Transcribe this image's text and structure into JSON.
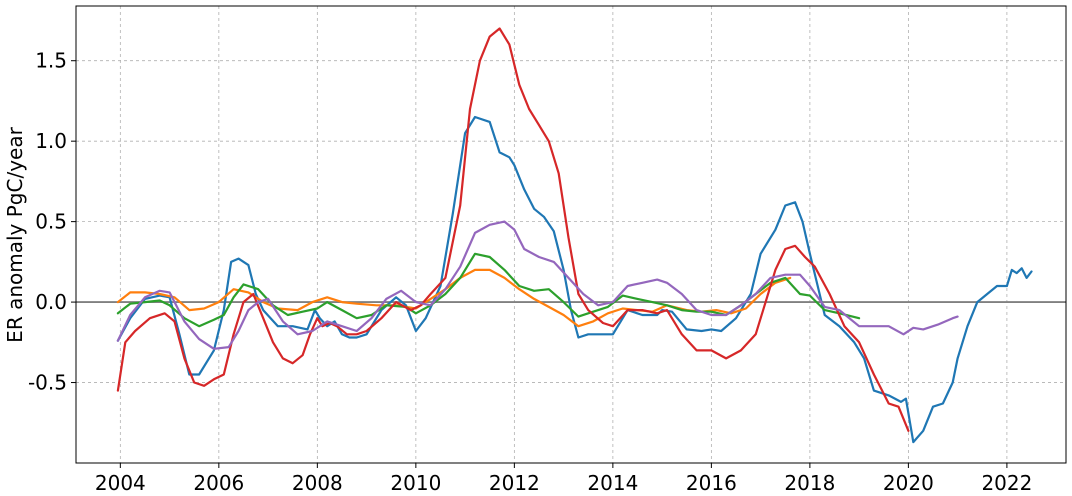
{
  "chart_data": {
    "type": "line",
    "title": "",
    "xlabel": "",
    "ylabel": "ER anomaly PgC/year",
    "xlim": [
      2003.1,
      2023.2
    ],
    "ylim": [
      -1.0,
      1.84
    ],
    "xticks": [
      2004,
      2006,
      2008,
      2010,
      2012,
      2014,
      2016,
      2018,
      2020,
      2022
    ],
    "xtick_labels": [
      "2004",
      "2006",
      "2008",
      "2010",
      "2012",
      "2014",
      "2016",
      "2018",
      "2020",
      "2022"
    ],
    "yticks": [
      -0.5,
      0.0,
      0.5,
      1.0,
      1.5
    ],
    "ytick_labels": [
      "-0.5",
      "0.0",
      "0.5",
      "1.0",
      "1.5"
    ],
    "grid": true,
    "zero_line": true,
    "series": [
      {
        "color": "#1f77b4",
        "x": [
          2003.95,
          2004.2,
          2004.5,
          2004.8,
          2005.0,
          2005.2,
          2005.4,
          2005.6,
          2005.9,
          2006.1,
          2006.25,
          2006.4,
          2006.6,
          2006.75,
          2006.9,
          2007.2,
          2007.5,
          2007.8,
          2007.95,
          2008.05,
          2008.2,
          2008.35,
          2008.5,
          2008.65,
          2008.8,
          2009.0,
          2009.3,
          2009.6,
          2009.8,
          2010.0,
          2010.2,
          2010.5,
          2010.75,
          2011.0,
          2011.2,
          2011.5,
          2011.7,
          2011.9,
          2012.0,
          2012.2,
          2012.4,
          2012.6,
          2012.8,
          2013.0,
          2013.15,
          2013.3,
          2013.5,
          2013.8,
          2014.0,
          2014.3,
          2014.6,
          2014.9,
          2015.0,
          2015.2,
          2015.5,
          2015.8,
          2016.0,
          2016.2,
          2016.5,
          2016.8,
          2017.0,
          2017.3,
          2017.5,
          2017.7,
          2017.85,
          2018.0,
          2018.3,
          2018.6,
          2018.9,
          2019.1,
          2019.3,
          2019.6,
          2019.85,
          2019.95,
          2020.1,
          2020.3,
          2020.5,
          2020.7,
          2020.9,
          2021.0,
          2021.2,
          2021.4,
          2021.6,
          2021.8,
          2022.0,
          2022.1,
          2022.2,
          2022.3,
          2022.4,
          2022.5
        ],
        "y": [
          -0.24,
          -0.1,
          0.02,
          0.04,
          0.03,
          -0.2,
          -0.45,
          -0.45,
          -0.3,
          -0.05,
          0.25,
          0.27,
          0.23,
          0.05,
          -0.05,
          -0.15,
          -0.15,
          -0.17,
          -0.05,
          -0.1,
          -0.15,
          -0.12,
          -0.2,
          -0.22,
          -0.22,
          -0.2,
          -0.05,
          0.03,
          -0.02,
          -0.18,
          -0.1,
          0.1,
          0.55,
          1.05,
          1.15,
          1.12,
          0.93,
          0.9,
          0.85,
          0.7,
          0.58,
          0.53,
          0.44,
          0.2,
          -0.05,
          -0.22,
          -0.2,
          -0.2,
          -0.2,
          -0.05,
          -0.08,
          -0.08,
          -0.05,
          -0.06,
          -0.17,
          -0.18,
          -0.17,
          -0.18,
          -0.1,
          0.05,
          0.3,
          0.45,
          0.6,
          0.62,
          0.5,
          0.3,
          -0.08,
          -0.15,
          -0.25,
          -0.35,
          -0.55,
          -0.58,
          -0.62,
          -0.6,
          -0.87,
          -0.8,
          -0.65,
          -0.63,
          -0.5,
          -0.35,
          -0.15,
          0.0,
          0.05,
          0.1,
          0.1,
          0.2,
          0.18,
          0.21,
          0.15,
          0.19
        ]
      },
      {
        "color": "#ff7f0e",
        "x": [
          2003.95,
          2004.2,
          2004.5,
          2004.8,
          2005.1,
          2005.4,
          2005.7,
          2006.0,
          2006.3,
          2006.6,
          2006.9,
          2007.2,
          2007.6,
          2007.9,
          2008.2,
          2008.5,
          2008.8,
          2009.2,
          2009.6,
          2010.0,
          2010.3,
          2010.6,
          2010.9,
          2011.2,
          2011.5,
          2011.8,
          2012.1,
          2012.4,
          2012.7,
          2013.0,
          2013.3,
          2013.6,
          2013.9,
          2014.2,
          2014.5,
          2014.8,
          2015.1,
          2015.5,
          2015.8,
          2016.1,
          2016.4,
          2016.7,
          2017.0,
          2017.3,
          2017.6
        ],
        "y": [
          0.0,
          0.06,
          0.06,
          0.05,
          0.03,
          -0.05,
          -0.04,
          0.0,
          0.08,
          0.06,
          0.0,
          -0.04,
          -0.05,
          0.0,
          0.03,
          0.0,
          -0.01,
          -0.02,
          -0.02,
          -0.04,
          0.02,
          0.08,
          0.15,
          0.2,
          0.2,
          0.15,
          0.08,
          0.02,
          -0.03,
          -0.08,
          -0.15,
          -0.12,
          -0.07,
          -0.04,
          -0.05,
          -0.06,
          -0.02,
          -0.05,
          -0.06,
          -0.05,
          -0.07,
          -0.04,
          0.05,
          0.12,
          0.15
        ]
      },
      {
        "color": "#2ca02c",
        "x": [
          2003.95,
          2004.2,
          2004.5,
          2004.8,
          2005.0,
          2005.3,
          2005.6,
          2005.9,
          2006.1,
          2006.3,
          2006.5,
          2006.8,
          2007.1,
          2007.4,
          2007.7,
          2008.0,
          2008.2,
          2008.5,
          2008.8,
          2009.1,
          2009.4,
          2009.8,
          2010.0,
          2010.3,
          2010.6,
          2010.9,
          2011.2,
          2011.5,
          2011.8,
          2012.1,
          2012.4,
          2012.7,
          2013.0,
          2013.3,
          2013.6,
          2013.9,
          2014.2,
          2014.5,
          2014.8,
          2015.1,
          2015.4,
          2015.7,
          2016.0,
          2016.3,
          2016.6,
          2016.9,
          2017.2,
          2017.5,
          2017.8,
          2018.0,
          2018.3,
          2018.6,
          2019.0
        ],
        "y": [
          -0.07,
          -0.01,
          0.0,
          0.01,
          -0.02,
          -0.1,
          -0.15,
          -0.11,
          -0.08,
          0.03,
          0.11,
          0.08,
          -0.02,
          -0.08,
          -0.06,
          -0.04,
          0.0,
          -0.05,
          -0.1,
          -0.08,
          -0.02,
          -0.03,
          -0.07,
          -0.02,
          0.05,
          0.15,
          0.3,
          0.28,
          0.2,
          0.1,
          0.07,
          0.08,
          0.0,
          -0.09,
          -0.06,
          -0.03,
          0.04,
          0.02,
          0.0,
          -0.02,
          -0.05,
          -0.06,
          -0.06,
          -0.08,
          -0.02,
          0.05,
          0.12,
          0.15,
          0.05,
          0.04,
          -0.05,
          -0.07,
          -0.1
        ]
      },
      {
        "color": "#d62728",
        "x": [
          2003.95,
          2004.1,
          2004.3,
          2004.6,
          2004.9,
          2005.1,
          2005.3,
          2005.5,
          2005.7,
          2005.9,
          2006.1,
          2006.3,
          2006.5,
          2006.7,
          2006.9,
          2007.1,
          2007.3,
          2007.5,
          2007.7,
          2007.85,
          2008.0,
          2008.1,
          2008.25,
          2008.4,
          2008.6,
          2008.8,
          2009.0,
          2009.3,
          2009.6,
          2009.9,
          2010.1,
          2010.3,
          2010.6,
          2010.9,
          2011.1,
          2011.3,
          2011.5,
          2011.7,
          2011.9,
          2012.1,
          2012.3,
          2012.5,
          2012.7,
          2012.9,
          2013.1,
          2013.3,
          2013.5,
          2013.8,
          2014.0,
          2014.3,
          2014.6,
          2014.9,
          2015.1,
          2015.4,
          2015.7,
          2016.0,
          2016.3,
          2016.6,
          2016.9,
          2017.1,
          2017.3,
          2017.5,
          2017.7,
          2017.9,
          2018.1,
          2018.4,
          2018.7,
          2019.0,
          2019.3,
          2019.6,
          2019.8,
          2020.0
        ],
        "y": [
          -0.55,
          -0.25,
          -0.18,
          -0.1,
          -0.07,
          -0.12,
          -0.35,
          -0.5,
          -0.52,
          -0.48,
          -0.45,
          -0.2,
          0.0,
          0.05,
          -0.1,
          -0.25,
          -0.35,
          -0.38,
          -0.33,
          -0.2,
          -0.1,
          -0.15,
          -0.13,
          -0.15,
          -0.2,
          -0.2,
          -0.18,
          -0.1,
          0.0,
          -0.05,
          -0.02,
          0.05,
          0.15,
          0.6,
          1.2,
          1.5,
          1.65,
          1.7,
          1.6,
          1.35,
          1.2,
          1.1,
          1.0,
          0.8,
          0.4,
          0.05,
          -0.05,
          -0.13,
          -0.15,
          -0.05,
          -0.05,
          -0.07,
          -0.05,
          -0.2,
          -0.3,
          -0.3,
          -0.35,
          -0.3,
          -0.2,
          0.0,
          0.2,
          0.33,
          0.35,
          0.28,
          0.22,
          0.05,
          -0.15,
          -0.25,
          -0.45,
          -0.63,
          -0.65,
          -0.8
        ]
      },
      {
        "color": "#9467bd",
        "x": [
          2003.95,
          2004.2,
          2004.5,
          2004.8,
          2005.0,
          2005.3,
          2005.6,
          2005.9,
          2006.2,
          2006.4,
          2006.6,
          2006.8,
          2007.0,
          2007.3,
          2007.6,
          2007.9,
          2008.2,
          2008.5,
          2008.8,
          2009.1,
          2009.4,
          2009.7,
          2010.0,
          2010.3,
          2010.6,
          2010.9,
          2011.2,
          2011.5,
          2011.8,
          2012.0,
          2012.2,
          2012.5,
          2012.8,
          2013.1,
          2013.4,
          2013.7,
          2014.0,
          2014.3,
          2014.6,
          2014.9,
          2015.1,
          2015.4,
          2015.7,
          2016.0,
          2016.3,
          2016.6,
          2016.9,
          2017.2,
          2017.5,
          2017.8,
          2018.0,
          2018.3,
          2018.6,
          2019.0,
          2019.3,
          2019.6,
          2019.9,
          2020.1,
          2020.3,
          2020.6,
          2020.9,
          2021.0
        ],
        "y": [
          -0.24,
          -0.08,
          0.03,
          0.07,
          0.06,
          -0.12,
          -0.23,
          -0.29,
          -0.28,
          -0.18,
          -0.05,
          0.0,
          0.02,
          -0.12,
          -0.2,
          -0.18,
          -0.12,
          -0.15,
          -0.18,
          -0.1,
          0.02,
          0.07,
          0.0,
          -0.02,
          0.08,
          0.22,
          0.43,
          0.48,
          0.5,
          0.45,
          0.33,
          0.28,
          0.25,
          0.15,
          0.05,
          -0.02,
          0.0,
          0.1,
          0.12,
          0.14,
          0.12,
          0.05,
          -0.05,
          -0.08,
          -0.08,
          -0.02,
          0.05,
          0.15,
          0.17,
          0.17,
          0.1,
          -0.03,
          -0.05,
          -0.15,
          -0.15,
          -0.15,
          -0.2,
          -0.16,
          -0.17,
          -0.14,
          -0.1,
          -0.09
        ]
      }
    ]
  }
}
